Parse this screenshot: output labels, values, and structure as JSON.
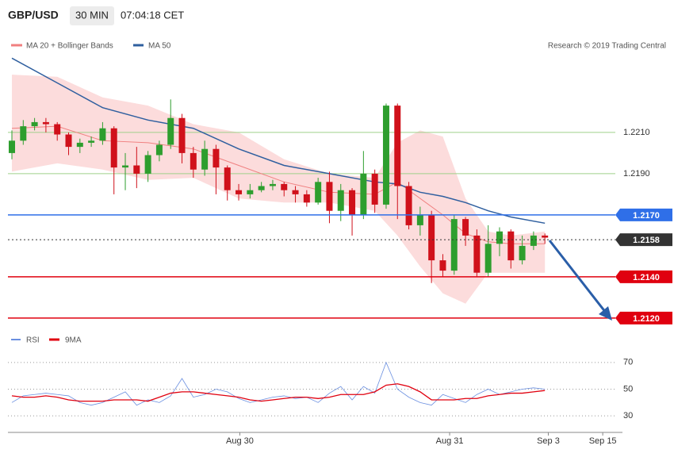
{
  "chart_data": [
    {
      "type": "candlestick",
      "title": "GBP/USD",
      "interval": "30 MIN",
      "time": "07:04:18 CET",
      "credit": "Research © 2019 Trading Central",
      "up_color": "#2e9e2e",
      "down_color": "#d0111b",
      "open": [
        1.22,
        1.2206,
        1.2213,
        1.2215,
        1.2214,
        1.2209,
        1.2203,
        1.2205,
        1.2206,
        1.2212,
        1.2193,
        1.2194,
        1.219,
        1.2199,
        1.2204,
        1.2217,
        1.22,
        1.2192,
        1.2202,
        1.2193,
        1.2182,
        1.218,
        1.2182,
        1.2184,
        1.2185,
        1.2182,
        1.218,
        1.2176,
        1.2186,
        1.2172,
        1.2182,
        1.217,
        1.219,
        1.2175,
        1.2223,
        1.2184,
        1.2165,
        1.217,
        1.2148,
        1.2143,
        1.2168,
        1.216,
        1.2142,
        1.2156,
        1.2162,
        1.2148,
        1.2155,
        1.216
      ],
      "high": [
        1.2211,
        1.2216,
        1.2217,
        1.2217,
        1.2215,
        1.221,
        1.2207,
        1.2208,
        1.2215,
        1.2213,
        1.22,
        1.2203,
        1.2201,
        1.2206,
        1.2226,
        1.2219,
        1.2203,
        1.2206,
        1.2204,
        1.2194,
        1.2185,
        1.2185,
        1.2186,
        1.2187,
        1.2186,
        1.2184,
        1.2182,
        1.2188,
        1.2191,
        1.2185,
        1.2183,
        1.2201,
        1.2192,
        1.2224,
        1.2224,
        1.2186,
        1.2174,
        1.2172,
        1.2151,
        1.217,
        1.2169,
        1.2163,
        1.2165,
        1.2164,
        1.2163,
        1.216,
        1.2162,
        1.2161
      ],
      "low": [
        1.2197,
        1.2204,
        1.2211,
        1.221,
        1.2206,
        1.2199,
        1.22,
        1.2203,
        1.2204,
        1.218,
        1.2182,
        1.2183,
        1.2186,
        1.2196,
        1.2202,
        1.2195,
        1.2188,
        1.2189,
        1.218,
        1.2177,
        1.2177,
        1.2178,
        1.2181,
        1.2182,
        1.2179,
        1.2176,
        1.2174,
        1.2175,
        1.2166,
        1.2167,
        1.216,
        1.2168,
        1.2171,
        1.2173,
        1.2168,
        1.2163,
        1.216,
        1.2137,
        1.214,
        1.2141,
        1.2155,
        1.214,
        1.214,
        1.215,
        1.2144,
        1.2146,
        1.2153,
        1.2156
      ],
      "close": [
        1.2206,
        1.2213,
        1.2215,
        1.2214,
        1.2209,
        1.2203,
        1.2205,
        1.2206,
        1.2212,
        1.2193,
        1.2194,
        1.219,
        1.2199,
        1.2204,
        1.2217,
        1.22,
        1.2192,
        1.2202,
        1.2193,
        1.2182,
        1.218,
        1.2182,
        1.2184,
        1.2185,
        1.2182,
        1.218,
        1.2176,
        1.2186,
        1.2172,
        1.2182,
        1.217,
        1.219,
        1.2175,
        1.2223,
        1.2184,
        1.2165,
        1.217,
        1.2148,
        1.2143,
        1.2168,
        1.216,
        1.2142,
        1.2156,
        1.2162,
        1.2148,
        1.2155,
        1.216,
        1.2159
      ],
      "line_x": [
        0,
        4,
        8,
        12,
        16,
        20,
        24,
        28,
        32,
        34,
        36,
        38,
        40,
        42,
        44,
        47
      ],
      "series": [
        {
          "name": "MA 20 + Bollinger Bands",
          "color": "#f08080",
          "band_color": "#fcdcdc",
          "values": [
            1.2212,
            1.2213,
            1.2206,
            1.2205,
            1.2202,
            1.2194,
            1.2186,
            1.2181,
            1.218,
            1.2186,
            1.2178,
            1.217,
            1.2161,
            1.2157,
            1.2156,
            1.2156
          ],
          "upper": [
            1.2238,
            1.2237,
            1.2227,
            1.2223,
            1.2214,
            1.221,
            1.2197,
            1.219,
            1.2188,
            1.2205,
            1.2211,
            1.2208,
            1.2178,
            1.2162,
            1.216,
            1.2162
          ],
          "lower": [
            1.2191,
            1.2195,
            1.2192,
            1.2187,
            1.2188,
            1.2178,
            1.2176,
            1.2176,
            1.2172,
            1.216,
            1.2145,
            1.2132,
            1.2127,
            1.2142,
            1.2142,
            1.2142
          ]
        },
        {
          "name": "MA 50",
          "color": "#2f5f9f",
          "values": [
            1.2246,
            1.2234,
            1.2222,
            1.2216,
            1.2212,
            1.2202,
            1.2194,
            1.219,
            1.2186,
            1.2185,
            1.2181,
            1.2179,
            1.2176,
            1.2172,
            1.2169,
            1.2166
          ]
        }
      ],
      "xlim": [
        0,
        53
      ],
      "ylim": [
        1.21165,
        1.22492
      ],
      "yticks": [
        {
          "value": 1.219,
          "label": "1.2190"
        },
        {
          "value": 1.221,
          "label": "1.2210"
        }
      ],
      "grid_color": "#9fd08a",
      "levels": [
        {
          "value": 1.217,
          "label": "1.2170",
          "color": "#2f6fe8",
          "style": "solid"
        },
        {
          "value": 1.2158,
          "label": "1.2158",
          "color": "#333333",
          "style": "dotted"
        },
        {
          "value": 1.214,
          "label": "1.2140",
          "color": "#e0000f",
          "style": "solid"
        },
        {
          "value": 1.212,
          "label": "1.2120",
          "color": "#e0000f",
          "style": "solid"
        }
      ]
    },
    {
      "type": "line",
      "xlim": [
        0,
        53
      ],
      "ylim": [
        20,
        80
      ],
      "yticks": [
        30,
        50,
        70
      ],
      "xticks": [
        {
          "value": 20.1,
          "label": "Aug 30"
        },
        {
          "value": 38.6,
          "label": "Aug 31"
        },
        {
          "value": 47.3,
          "label": "Sep 3"
        },
        {
          "value": 52.1,
          "label": "Sep 15"
        }
      ],
      "series": [
        {
          "name": "RSI",
          "color": "#6a8fe0",
          "values": [
            40,
            45,
            46,
            47,
            46,
            45,
            40,
            38,
            40,
            44,
            48,
            38,
            42,
            40,
            45,
            58,
            44,
            46,
            50,
            48,
            43,
            40,
            42,
            44,
            45,
            43,
            44,
            40,
            47,
            52,
            42,
            52,
            47,
            70,
            50,
            44,
            40,
            38,
            46,
            43,
            40,
            46,
            50,
            46,
            48,
            50,
            51,
            50
          ]
        },
        {
          "name": "9MA",
          "color": "#e0000f",
          "values": [
            45,
            44,
            44,
            45,
            44,
            42,
            41,
            41,
            41,
            42,
            42,
            42,
            41,
            44,
            47,
            48,
            48,
            47,
            46,
            45,
            44,
            42,
            41,
            42,
            43,
            44,
            44,
            43,
            44,
            46,
            46,
            46,
            48,
            53,
            54,
            52,
            48,
            42,
            42,
            42,
            43,
            43,
            45,
            46,
            47,
            47,
            48,
            49
          ]
        }
      ]
    }
  ]
}
